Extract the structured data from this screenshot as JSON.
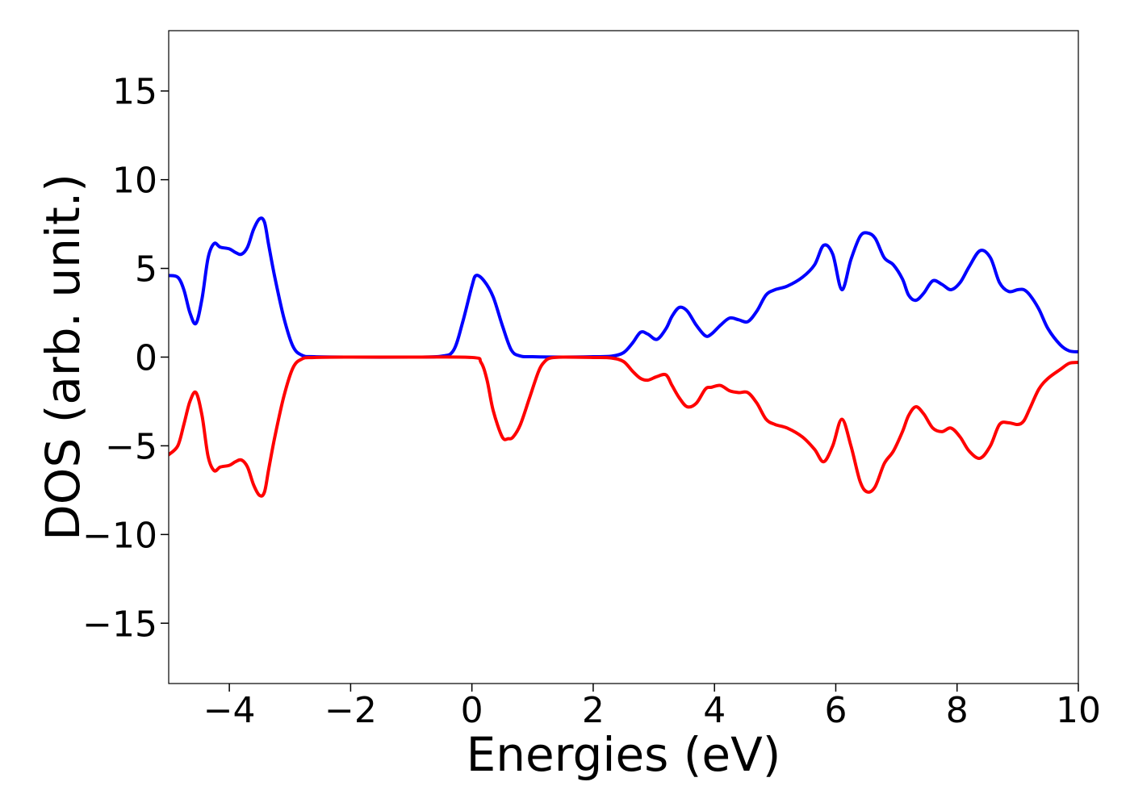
{
  "chart_data": {
    "type": "line",
    "title": "",
    "xlabel": "Energies (eV)",
    "ylabel": "DOS (arb. unit.)",
    "xlim": [
      -5,
      10
    ],
    "ylim": [
      -18.4,
      18.4
    ],
    "grid": false,
    "x_ticks": [
      -4,
      -2,
      0,
      2,
      4,
      6,
      8,
      10
    ],
    "y_ticks": [
      -15,
      -10,
      -5,
      0,
      5,
      10,
      15
    ],
    "x_tick_labels": [
      "−4",
      "−2",
      "0",
      "2",
      "4",
      "6",
      "8",
      "10"
    ],
    "y_tick_labels": [
      "−15",
      "−10",
      "−5",
      "0",
      "5",
      "10",
      "15"
    ],
    "series": [
      {
        "color": "#0000ff",
        "x": [
          -5.0,
          -4.85,
          -4.75,
          -4.65,
          -4.55,
          -4.45,
          -4.35,
          -4.25,
          -4.15,
          -4.0,
          -3.9,
          -3.8,
          -3.7,
          -3.6,
          -3.5,
          -3.42,
          -3.35,
          -3.25,
          -3.1,
          -2.95,
          -2.8,
          -2.6,
          -2.0,
          -1.0,
          -0.5,
          -0.3,
          -0.15,
          0.0,
          0.07,
          0.2,
          0.35,
          0.5,
          0.65,
          0.8,
          1.0,
          1.5,
          2.0,
          2.3,
          2.5,
          2.65,
          2.78,
          2.9,
          3.05,
          3.2,
          3.3,
          3.42,
          3.55,
          3.7,
          3.85,
          3.95,
          4.1,
          4.25,
          4.4,
          4.55,
          4.7,
          4.85,
          5.0,
          5.2,
          5.45,
          5.65,
          5.8,
          5.95,
          6.1,
          6.25,
          6.4,
          6.52,
          6.65,
          6.8,
          6.95,
          7.1,
          7.2,
          7.32,
          7.45,
          7.6,
          7.75,
          7.9,
          8.05,
          8.2,
          8.38,
          8.55,
          8.7,
          8.85,
          9.0,
          9.1,
          9.2,
          9.35,
          9.5,
          9.7,
          9.85,
          10.0
        ],
        "y": [
          4.6,
          4.5,
          3.8,
          2.5,
          1.9,
          3.3,
          5.6,
          6.4,
          6.2,
          6.1,
          5.9,
          5.8,
          6.2,
          7.2,
          7.8,
          7.6,
          6.3,
          4.5,
          2.2,
          0.6,
          0.1,
          0.02,
          0.0,
          0.0,
          0.05,
          0.4,
          2.0,
          4.0,
          4.6,
          4.3,
          3.4,
          1.8,
          0.4,
          0.06,
          0.02,
          0.0,
          0.02,
          0.05,
          0.25,
          0.8,
          1.4,
          1.3,
          1.0,
          1.6,
          2.3,
          2.8,
          2.6,
          1.8,
          1.2,
          1.3,
          1.8,
          2.2,
          2.1,
          2.0,
          2.6,
          3.5,
          3.8,
          4.0,
          4.5,
          5.2,
          6.3,
          5.8,
          3.8,
          5.5,
          6.8,
          7.0,
          6.7,
          5.6,
          5.2,
          4.4,
          3.5,
          3.2,
          3.6,
          4.3,
          4.1,
          3.8,
          4.2,
          5.1,
          6.0,
          5.6,
          4.2,
          3.7,
          3.8,
          3.8,
          3.5,
          2.7,
          1.6,
          0.7,
          0.35,
          0.3
        ]
      },
      {
        "color": "#ff0000",
        "x": [
          -5.0,
          -4.85,
          -4.75,
          -4.65,
          -4.55,
          -4.45,
          -4.35,
          -4.25,
          -4.15,
          -4.0,
          -3.9,
          -3.8,
          -3.7,
          -3.6,
          -3.5,
          -3.42,
          -3.35,
          -3.25,
          -3.1,
          -2.95,
          -2.8,
          -2.6,
          -2.0,
          -1.0,
          0.0,
          0.15,
          0.25,
          0.35,
          0.5,
          0.6,
          0.68,
          0.8,
          0.95,
          1.1,
          1.2,
          1.3,
          1.5,
          2.0,
          2.3,
          2.5,
          2.65,
          2.78,
          2.9,
          3.05,
          3.2,
          3.3,
          3.42,
          3.55,
          3.7,
          3.85,
          3.95,
          4.1,
          4.25,
          4.4,
          4.55,
          4.7,
          4.85,
          5.0,
          5.2,
          5.45,
          5.65,
          5.8,
          5.95,
          6.1,
          6.25,
          6.4,
          6.52,
          6.65,
          6.8,
          6.95,
          7.1,
          7.2,
          7.32,
          7.45,
          7.6,
          7.75,
          7.9,
          8.05,
          8.2,
          8.38,
          8.55,
          8.7,
          8.85,
          9.0,
          9.1,
          9.2,
          9.35,
          9.5,
          9.7,
          9.85,
          10.0
        ],
        "y": [
          -5.5,
          -5.0,
          -3.8,
          -2.5,
          -2.0,
          -3.3,
          -5.6,
          -6.4,
          -6.2,
          -6.1,
          -5.9,
          -5.8,
          -6.2,
          -7.2,
          -7.8,
          -7.6,
          -6.3,
          -4.5,
          -2.2,
          -0.6,
          -0.1,
          -0.02,
          0.0,
          0.0,
          -0.02,
          -0.3,
          -1.3,
          -3.0,
          -4.5,
          -4.6,
          -4.5,
          -3.8,
          -2.3,
          -0.8,
          -0.25,
          -0.05,
          0.0,
          -0.02,
          -0.05,
          -0.25,
          -0.8,
          -1.2,
          -1.3,
          -1.1,
          -1.0,
          -1.6,
          -2.3,
          -2.8,
          -2.6,
          -1.8,
          -1.7,
          -1.6,
          -1.9,
          -2.0,
          -2.0,
          -2.6,
          -3.5,
          -3.8,
          -4.0,
          -4.5,
          -5.2,
          -5.9,
          -5.0,
          -3.5,
          -5.0,
          -7.0,
          -7.6,
          -7.3,
          -6.0,
          -5.3,
          -4.2,
          -3.3,
          -2.8,
          -3.2,
          -4.0,
          -4.2,
          -4.0,
          -4.5,
          -5.3,
          -5.7,
          -5.0,
          -3.8,
          -3.7,
          -3.8,
          -3.6,
          -2.9,
          -1.8,
          -1.2,
          -0.7,
          -0.35,
          -0.3
        ]
      }
    ]
  }
}
